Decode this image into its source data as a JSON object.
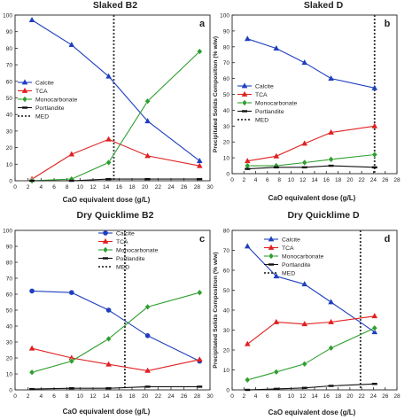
{
  "colors": {
    "calcite": "#1f3fbf",
    "tca": "#e02020",
    "monocarbonate": "#2e9e2e",
    "portlandite": "#111111",
    "med": "#333333"
  },
  "chart_data": [
    {
      "panel": "a",
      "type": "line",
      "title": "Slaked B2",
      "xlabel": "CaO equivalent dose (g/L)",
      "ylabel": "",
      "xlim": [
        0,
        30
      ],
      "ylim": [
        0,
        100
      ],
      "xticks": [
        "0",
        "2",
        "4",
        "6",
        "8",
        "10",
        "12",
        "14",
        "16",
        "18",
        "20",
        "22",
        "24",
        "26",
        "28",
        "30"
      ],
      "yticks": [
        "0",
        "10",
        "20",
        "30",
        "40",
        "50",
        "60",
        "70",
        "80",
        "90",
        "100"
      ],
      "grid": false,
      "legend": "middle-left",
      "med_x": 15.2,
      "series": [
        {
          "name": "Calcite",
          "marker": "triangle",
          "x": [
            2.6,
            8.7,
            14.4,
            20.4,
            28.4
          ],
          "y": [
            97,
            82,
            63,
            36,
            12
          ]
        },
        {
          "name": "TCA",
          "marker": "triangle",
          "x": [
            2.6,
            8.7,
            14.4,
            20.4,
            28.4
          ],
          "y": [
            1,
            16,
            25,
            15,
            9
          ]
        },
        {
          "name": "Monocarbonate",
          "marker": "diamond",
          "x": [
            2.6,
            8.7,
            14.4,
            20.4,
            28.4
          ],
          "y": [
            0,
            1,
            11,
            48,
            78
          ]
        },
        {
          "name": "Portlandite",
          "marker": "dash",
          "x": [
            2.6,
            8.7,
            14.4,
            20.4,
            28.4
          ],
          "y": [
            0,
            0,
            1,
            1,
            1
          ]
        },
        {
          "name": "MED",
          "marker": "dotted-line"
        }
      ]
    },
    {
      "panel": "b",
      "type": "line",
      "title": "Slaked D",
      "xlabel": "CaO equivalent dose (g/L)",
      "ylabel": "Precipitated Solids Composition  (% w/w)",
      "xlim": [
        0,
        28
      ],
      "ylim": [
        0,
        100
      ],
      "xticks": [
        "0",
        "2",
        "4",
        "6",
        "8",
        "10",
        "12",
        "14",
        "16",
        "18",
        "20",
        "22",
        "24",
        "26",
        "28"
      ],
      "yticks": [
        "0",
        "10",
        "20",
        "30",
        "40",
        "50",
        "60",
        "70",
        "80",
        "90",
        "100"
      ],
      "grid": false,
      "legend": "middle-left",
      "med_x": 24.2,
      "series": [
        {
          "name": "Calcite",
          "marker": "triangle",
          "x": [
            2.6,
            7.5,
            12.3,
            16.8,
            24.2
          ],
          "y": [
            85,
            79,
            70,
            60,
            54
          ]
        },
        {
          "name": "TCA",
          "marker": "triangle",
          "x": [
            2.6,
            7.5,
            12.3,
            16.8,
            24.2
          ],
          "y": [
            8,
            11,
            19,
            26,
            30
          ]
        },
        {
          "name": "Monocarbonate",
          "marker": "diamond",
          "x": [
            2.6,
            7.5,
            12.3,
            16.8,
            24.2
          ],
          "y": [
            5,
            5,
            7,
            9,
            12
          ]
        },
        {
          "name": "Portlandite",
          "marker": "dash",
          "x": [
            2.6,
            7.5,
            12.3,
            16.8,
            24.2
          ],
          "y": [
            3,
            4,
            4,
            5,
            4
          ]
        },
        {
          "name": "MED",
          "marker": "dotted-line"
        }
      ]
    },
    {
      "panel": "c",
      "type": "line",
      "title": "Dry Quicklime B2",
      "xlabel": "CaO equivalent dose (g/L)",
      "ylabel": "",
      "xlim": [
        0,
        30
      ],
      "ylim": [
        0,
        100
      ],
      "xticks": [
        "0",
        "2",
        "4",
        "6",
        "8",
        "10",
        "12",
        "14",
        "16",
        "18",
        "20",
        "22",
        "24",
        "26",
        "28",
        "30"
      ],
      "yticks": [
        "0",
        "10",
        "20",
        "30",
        "40",
        "50",
        "60",
        "70",
        "80",
        "90",
        "100"
      ],
      "grid": false,
      "legend": "top-right",
      "med_x": 16.9,
      "series": [
        {
          "name": "Calcite",
          "marker": "circle",
          "x": [
            2.6,
            8.7,
            14.4,
            20.4,
            28.4
          ],
          "y": [
            62,
            61,
            50,
            34,
            18
          ]
        },
        {
          "name": "TCA",
          "marker": "triangle",
          "x": [
            2.6,
            8.7,
            14.4,
            20.4,
            28.4
          ],
          "y": [
            26,
            20,
            16,
            12,
            19
          ]
        },
        {
          "name": "Monocarbonate",
          "marker": "diamond",
          "x": [
            2.6,
            8.7,
            14.4,
            20.4,
            28.4
          ],
          "y": [
            11,
            18,
            32,
            52,
            61
          ]
        },
        {
          "name": "Portlandite",
          "marker": "dash",
          "x": [
            2.6,
            8.7,
            14.4,
            20.4,
            28.4
          ],
          "y": [
            0.5,
            1,
            1,
            2,
            2
          ]
        },
        {
          "name": "MED",
          "marker": "dotted-line"
        }
      ]
    },
    {
      "panel": "d",
      "type": "line",
      "title": "Dry Quicklime D",
      "xlabel": "CaO equivalent dose (g/L)",
      "ylabel": "Precipitated Solids Composition  (% w/w)",
      "xlim": [
        0,
        28
      ],
      "ylim": [
        0,
        80
      ],
      "xticks": [
        "0",
        "2",
        "4",
        "6",
        "8",
        "10",
        "12",
        "14",
        "16",
        "18",
        "20",
        "22",
        "24",
        "26",
        "28"
      ],
      "yticks": [
        "0",
        "10",
        "20",
        "30",
        "40",
        "50",
        "60",
        "70",
        "80"
      ],
      "grid": false,
      "legend": "top-right",
      "med_x": 21.8,
      "series": [
        {
          "name": "Calcite",
          "marker": "triangle",
          "x": [
            2.6,
            7.5,
            12.3,
            16.8,
            24.2
          ],
          "y": [
            72,
            57,
            53,
            44,
            29
          ]
        },
        {
          "name": "TCA",
          "marker": "triangle",
          "x": [
            2.6,
            7.5,
            12.3,
            16.8,
            24.2
          ],
          "y": [
            23,
            34,
            33,
            34,
            37
          ]
        },
        {
          "name": "Monocarbonate",
          "marker": "diamond",
          "x": [
            2.6,
            7.5,
            12.3,
            16.8,
            24.2
          ],
          "y": [
            5,
            9,
            13,
            21,
            31
          ]
        },
        {
          "name": "Portlandite",
          "marker": "dash",
          "x": [
            2.6,
            7.5,
            12.3,
            16.8,
            24.2
          ],
          "y": [
            0,
            0.5,
            1,
            2,
            3
          ]
        },
        {
          "name": "MED",
          "marker": "dotted-line"
        }
      ]
    }
  ]
}
